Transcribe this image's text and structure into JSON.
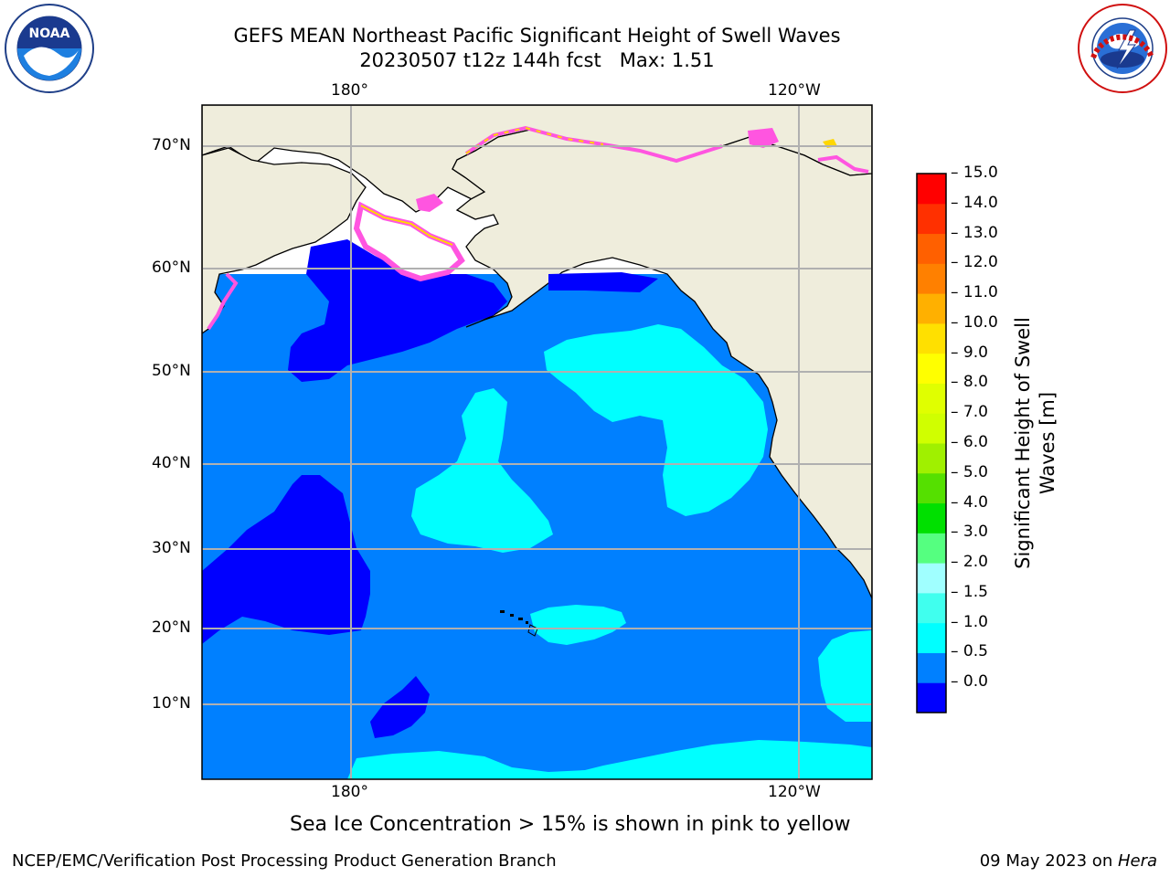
{
  "header": {
    "title_line1": "GEFS MEAN Northeast Pacific Significant Height of Swell Waves",
    "title_line2": "20230507 t12z 144h fcst   Max: 1.51"
  },
  "logos": {
    "left": "NOAA",
    "left_ring_text": "NATIONAL OCEANIC AND ATMOSPHERIC ADMINISTRATION · U.S. DEPARTMENT OF COMMERCE",
    "right_ring_text": "NATIONAL WEATHER SERVICE"
  },
  "map": {
    "lon_labels_top": [
      "180°",
      "120°W"
    ],
    "lon_labels_bottom": [
      "180°",
      "120°W"
    ],
    "lat_labels": [
      "70°N",
      "60°N",
      "50°N",
      "40°N",
      "30°N",
      "20°N",
      "10°N"
    ],
    "colors": {
      "land": "#efeddc",
      "ocean_0_05": "#0000ff",
      "ocean_05_10": "#0080ff",
      "ocean_10_15": "#00ffff",
      "ice_pink": "#ff55e0",
      "ice_yellow": "#ffd700",
      "grid": "#b0b0b0"
    }
  },
  "colorbar": {
    "label": "Significant Height of Swell Waves [m]",
    "ticks": [
      "15.0",
      "14.0",
      "13.0",
      "12.0",
      "11.0",
      "10.0",
      "9.0",
      "8.0",
      "7.0",
      "6.0",
      "5.0",
      "4.0",
      "3.0",
      "2.0",
      "1.5",
      "1.0",
      "0.5",
      "0.0"
    ],
    "colors_bottom_to_top": [
      "#0000ff",
      "#0080ff",
      "#00ffff",
      "#40ffee",
      "#a0ffff",
      "#55ff80",
      "#00e000",
      "#55e000",
      "#a0f000",
      "#d0ff00",
      "#e0ff00",
      "#ffff00",
      "#ffe000",
      "#ffb000",
      "#ff8000",
      "#ff6000",
      "#ff3000",
      "#ff0000"
    ]
  },
  "notes": {
    "sea_ice": "Sea Ice Concentration > 15% is shown in pink to yellow"
  },
  "footer": {
    "left": "NCEP/EMC/Verification Post Processing Product Generation Branch",
    "right_prefix": "09 May 2023 on ",
    "right_host": "Hera"
  }
}
